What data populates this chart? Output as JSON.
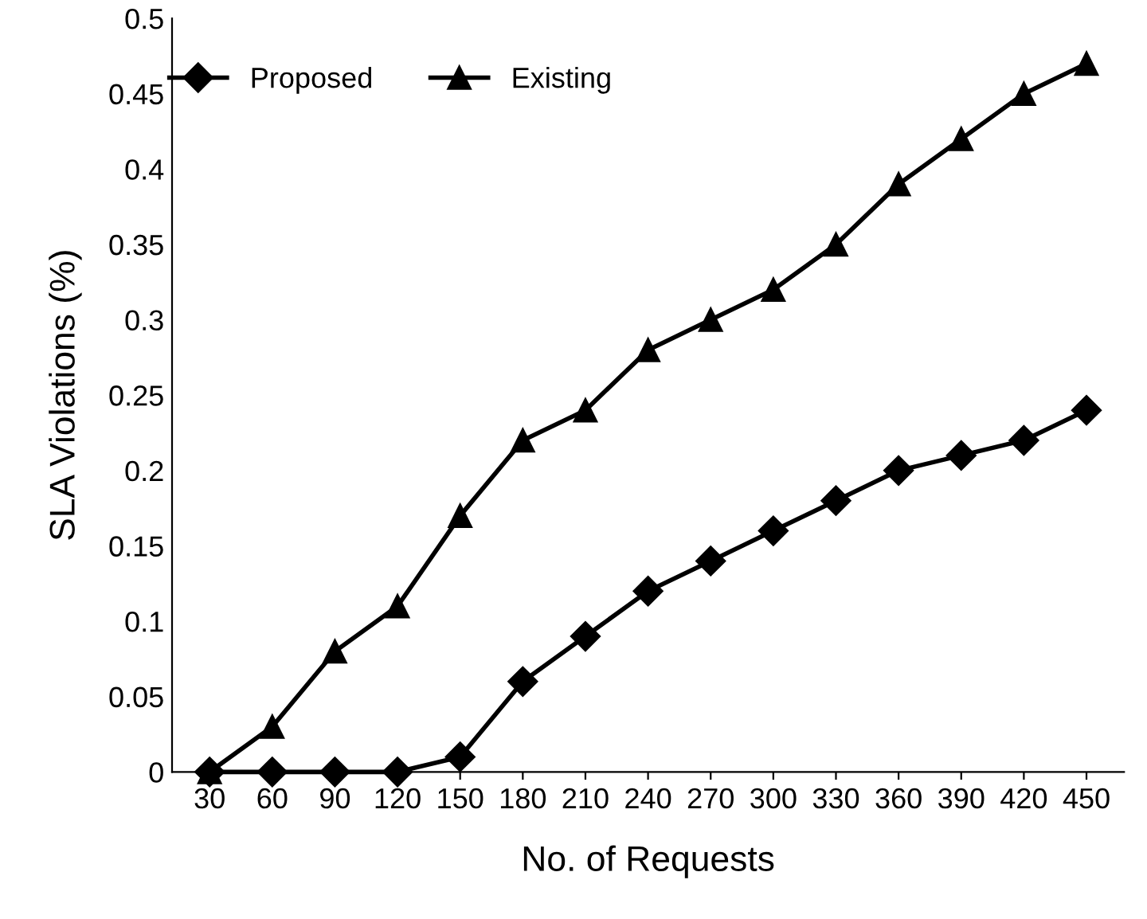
{
  "chart_data": {
    "type": "line",
    "xlabel": "No. of Requests",
    "ylabel": "SLA Violations (%)",
    "categories": [
      "30",
      "60",
      "90",
      "120",
      "150",
      "180",
      "210",
      "240",
      "270",
      "300",
      "330",
      "360",
      "390",
      "420",
      "450"
    ],
    "series": [
      {
        "name": "Proposed",
        "color": "#000000",
        "marker": "diamond",
        "values": [
          0,
          0,
          0,
          0,
          0.01,
          0.06,
          0.09,
          0.12,
          0.14,
          0.16,
          0.18,
          0.2,
          0.21,
          0.22,
          0.24
        ]
      },
      {
        "name": "Existing",
        "color": "#000000",
        "marker": "triangle",
        "values": [
          0,
          0.03,
          0.08,
          0.11,
          0.17,
          0.22,
          0.24,
          0.28,
          0.3,
          0.32,
          0.35,
          0.39,
          0.42,
          0.45,
          0.47
        ]
      }
    ],
    "ylim": [
      0,
      0.5
    ],
    "yticks": [
      0,
      0.05,
      0.1,
      0.15,
      0.2,
      0.25,
      0.3,
      0.35,
      0.4,
      0.45,
      0.5
    ],
    "grid": false,
    "legend": "top left",
    "line_style": "solid"
  }
}
